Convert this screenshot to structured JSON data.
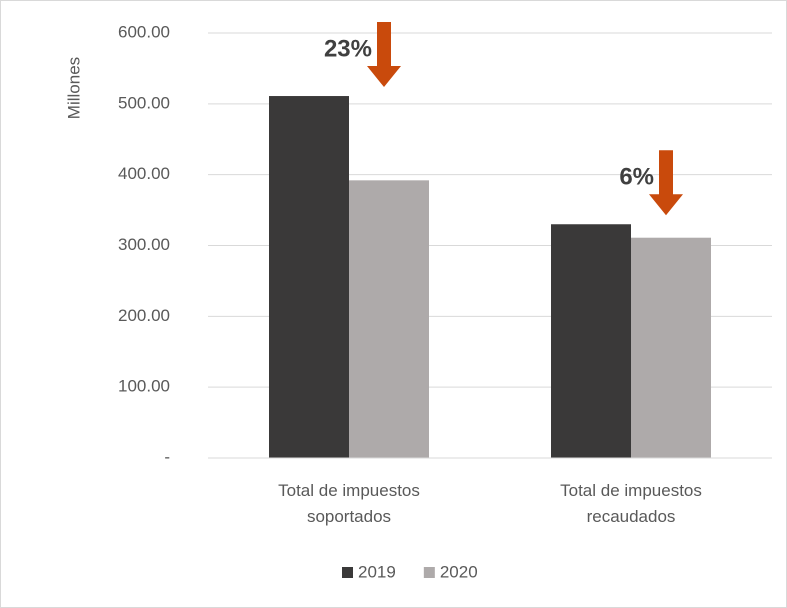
{
  "chart_data": {
    "type": "bar",
    "y_label": "Millones",
    "categories": [
      "Total de impuestos soportados",
      "Total de impuestos recaudados"
    ],
    "series": [
      {
        "name": "2019",
        "color": "#3a3939",
        "values": [
          511,
          330
        ]
      },
      {
        "name": "2020",
        "color": "#aeaaaa",
        "values": [
          392,
          311
        ]
      }
    ],
    "ylim": [
      0,
      600
    ],
    "yticks": [
      {
        "value": 0,
        "label": "-"
      },
      {
        "value": 100,
        "label": "100.00"
      },
      {
        "value": 200,
        "label": "200.00"
      },
      {
        "value": 300,
        "label": "300.00"
      },
      {
        "value": 400,
        "label": "400.00"
      },
      {
        "value": 500,
        "label": "500.00"
      },
      {
        "value": 600,
        "label": "600.00"
      }
    ],
    "grid": true,
    "legend": "bottom",
    "annotations": [
      "23%",
      "6%"
    ],
    "annotation_color": "#c94a0c"
  }
}
